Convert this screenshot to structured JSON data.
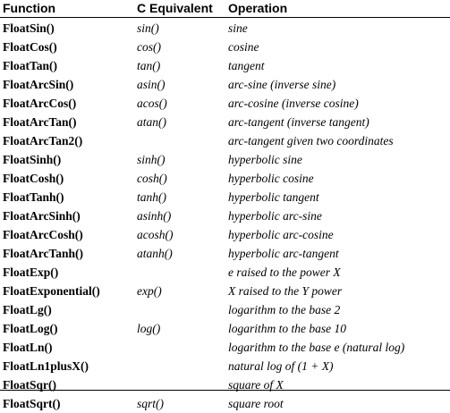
{
  "table": {
    "headers": {
      "function": "Function",
      "c_equivalent": "C Equivalent",
      "operation": "Operation"
    },
    "rows": [
      {
        "function": "FloatSin()",
        "c": "sin()",
        "op": "sine"
      },
      {
        "function": "FloatCos()",
        "c": "cos()",
        "op": "cosine"
      },
      {
        "function": "FloatTan()",
        "c": "tan()",
        "op": "tangent"
      },
      {
        "function": "FloatArcSin()",
        "c": "asin()",
        "op": "arc-sine (inverse sine)"
      },
      {
        "function": "FloatArcCos()",
        "c": "acos()",
        "op": "arc-cosine (inverse cosine)"
      },
      {
        "function": "FloatArcTan()",
        "c": "atan()",
        "op": "arc-tangent (inverse tangent)"
      },
      {
        "function": "FloatArcTan2()",
        "c": "",
        "op": "arc-tangent given two coordinates"
      },
      {
        "function": "FloatSinh()",
        "c": "sinh()",
        "op": "hyperbolic sine"
      },
      {
        "function": "FloatCosh()",
        "c": "cosh()",
        "op": "hyperbolic cosine"
      },
      {
        "function": "FloatTanh()",
        "c": "tanh()",
        "op": "hyperbolic tangent"
      },
      {
        "function": "FloatArcSinh()",
        "c": "asinh()",
        "op": "hyperbolic arc-sine"
      },
      {
        "function": "FloatArcCosh()",
        "c": "acosh()",
        "op": "hyperbolic arc-cosine"
      },
      {
        "function": "FloatArcTanh()",
        "c": "atanh()",
        "op": "hyperbolic arc-tangent"
      },
      {
        "function": "FloatExp()",
        "c": "",
        "op": "e raised to the power X"
      },
      {
        "function": "FloatExponential()",
        "c": "exp()",
        "op": "X raised to the Y power"
      },
      {
        "function": "FloatLg()",
        "c": "",
        "op": "logarithm to the base 2"
      },
      {
        "function": "FloatLog()",
        "c": "log()",
        "op": "logarithm to the base 10"
      },
      {
        "function": "FloatLn()",
        "c": "",
        "op": "logarithm to the base e (natural log)"
      },
      {
        "function": "FloatLn1plusX()",
        "c": "",
        "op": "natural log of (1 + X)"
      },
      {
        "function": "FloatSqr()",
        "c": "",
        "op": "square of X"
      },
      {
        "function": "FloatSqrt()",
        "c": "sqrt()",
        "op": "square root"
      }
    ]
  }
}
